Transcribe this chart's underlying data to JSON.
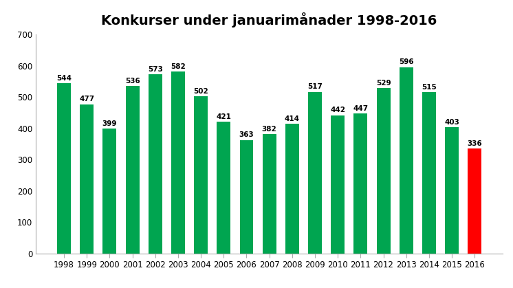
{
  "title": "Konkurser under januarimånader 1998-2016",
  "years": [
    1998,
    1999,
    2000,
    2001,
    2002,
    2003,
    2004,
    2005,
    2006,
    2007,
    2008,
    2009,
    2010,
    2011,
    2012,
    2013,
    2014,
    2015,
    2016
  ],
  "values": [
    544,
    477,
    399,
    536,
    573,
    582,
    502,
    421,
    363,
    382,
    414,
    517,
    442,
    447,
    529,
    596,
    515,
    403,
    336
  ],
  "bar_colors": [
    "#00a550",
    "#00a550",
    "#00a550",
    "#00a550",
    "#00a550",
    "#00a550",
    "#00a550",
    "#00a550",
    "#00a550",
    "#00a550",
    "#00a550",
    "#00a550",
    "#00a550",
    "#00a550",
    "#00a550",
    "#00a550",
    "#00a550",
    "#00a550",
    "#ff0000"
  ],
  "ylim": [
    0,
    700
  ],
  "yticks": [
    0,
    100,
    200,
    300,
    400,
    500,
    600,
    700
  ],
  "title_fontsize": 14,
  "label_fontsize": 7.5,
  "tick_fontsize": 8.5,
  "bar_width": 0.6,
  "background_color": "#ffffff"
}
